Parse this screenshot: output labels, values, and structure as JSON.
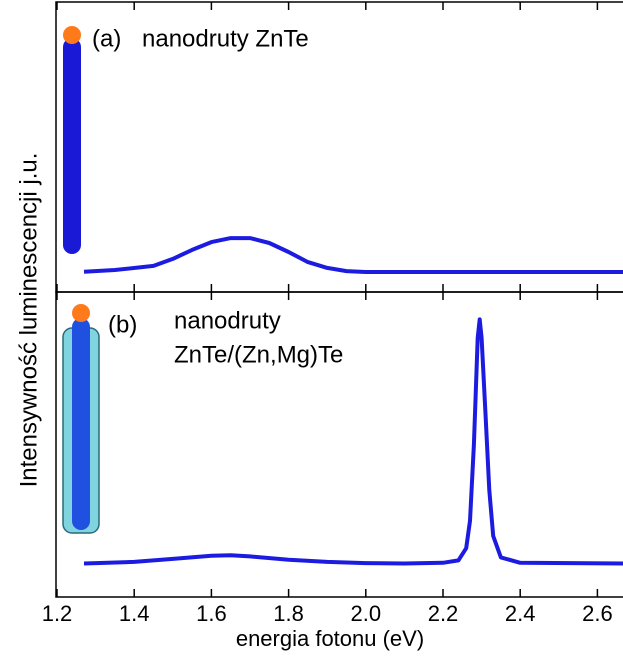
{
  "chart_data": [
    {
      "type": "line",
      "annotations": [
        "(a)",
        "nanodruty ZnTe"
      ],
      "xlim": [
        1.2,
        2.67
      ],
      "ylim": [
        0,
        1
      ],
      "x": [
        1.27,
        1.35,
        1.45,
        1.5,
        1.55,
        1.6,
        1.65,
        1.7,
        1.75,
        1.8,
        1.85,
        1.9,
        1.95,
        2.0,
        2.2,
        2.4,
        2.67
      ],
      "series": [
        {
          "color": "#1c1ce0",
          "values": [
            0.07,
            0.076,
            0.09,
            0.114,
            0.145,
            0.172,
            0.186,
            0.186,
            0.169,
            0.138,
            0.103,
            0.083,
            0.072,
            0.069,
            0.069,
            0.069,
            0.069
          ]
        }
      ]
    },
    {
      "type": "line",
      "annotations": [
        "(b)",
        "nanodruty",
        "ZnTe/(Zn,Mg)Te"
      ],
      "xlabel": "energia fotonu (eV)",
      "ylabel": "Intensywność luminescencji j.u.",
      "xlim": [
        1.2,
        2.67
      ],
      "ylim": [
        0,
        1
      ],
      "xticks": [
        {
          "value": 1.2,
          "label": "1.2"
        },
        {
          "value": 1.4,
          "label": "1.4"
        },
        {
          "value": 1.6,
          "label": "1.6"
        },
        {
          "value": 1.8,
          "label": "1.8"
        },
        {
          "value": 2.0,
          "label": "2.0"
        },
        {
          "value": 2.2,
          "label": "2.2"
        },
        {
          "value": 2.4,
          "label": "2.4"
        },
        {
          "value": 2.6,
          "label": "2.6"
        }
      ],
      "x": [
        1.27,
        1.4,
        1.5,
        1.6,
        1.65,
        1.7,
        1.8,
        1.9,
        2.0,
        2.1,
        2.2,
        2.24,
        2.26,
        2.27,
        2.28,
        2.29,
        2.295,
        2.3,
        2.31,
        2.32,
        2.33,
        2.35,
        2.4,
        2.67
      ],
      "series": [
        {
          "color": "#1c1ce0",
          "values": [
            0.11,
            0.115,
            0.125,
            0.135,
            0.137,
            0.133,
            0.122,
            0.115,
            0.111,
            0.11,
            0.112,
            0.12,
            0.16,
            0.25,
            0.5,
            0.85,
            0.91,
            0.85,
            0.6,
            0.35,
            0.2,
            0.13,
            0.112,
            0.11
          ]
        }
      ]
    }
  ]
}
